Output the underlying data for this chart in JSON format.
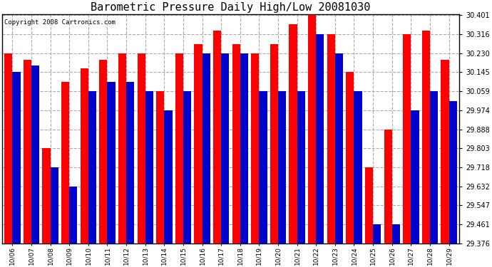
{
  "title": "Barometric Pressure Daily High/Low 20081030",
  "copyright": "Copyright 2008 Cartronics.com",
  "dates": [
    "10/06",
    "10/07",
    "10/08",
    "10/09",
    "10/10",
    "10/11",
    "10/12",
    "10/13",
    "10/14",
    "10/15",
    "10/16",
    "10/17",
    "10/18",
    "10/19",
    "10/20",
    "10/21",
    "10/22",
    "10/23",
    "10/24",
    "10/25",
    "10/26",
    "10/27",
    "10/28",
    "10/29"
  ],
  "highs": [
    30.23,
    30.2,
    29.803,
    30.1,
    30.16,
    30.2,
    30.23,
    30.23,
    30.059,
    30.23,
    30.27,
    30.33,
    30.27,
    30.23,
    30.27,
    30.36,
    30.401,
    30.316,
    30.145,
    29.718,
    29.888,
    30.316,
    30.33,
    30.2
  ],
  "lows": [
    30.145,
    30.175,
    29.718,
    29.632,
    30.059,
    30.1,
    30.1,
    30.059,
    29.974,
    30.059,
    30.23,
    30.23,
    30.23,
    30.059,
    30.059,
    30.059,
    30.316,
    30.23,
    30.059,
    29.461,
    29.461,
    29.974,
    30.059,
    30.016
  ],
  "high_color": "#ff0000",
  "low_color": "#0000cc",
  "background_color": "#ffffff",
  "plot_bg_color": "#ffffff",
  "grid_color": "#aaaaaa",
  "ymin": 29.376,
  "ymax": 30.401,
  "yticks": [
    29.376,
    29.461,
    29.547,
    29.632,
    29.718,
    29.803,
    29.888,
    29.974,
    30.059,
    30.145,
    30.23,
    30.316,
    30.401
  ],
  "bar_width": 0.42,
  "title_fontsize": 11,
  "tick_fontsize": 6.5,
  "ytick_fontsize": 7,
  "copyright_fontsize": 6.5
}
